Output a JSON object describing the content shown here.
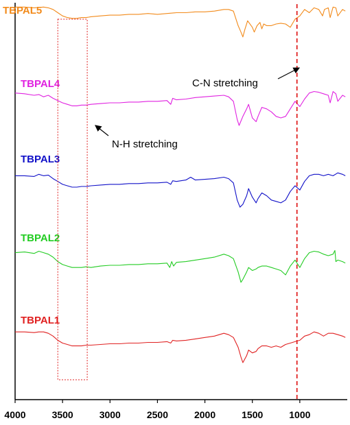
{
  "chart_data": {
    "type": "line",
    "title": "",
    "xlabel": "",
    "ylabel": "",
    "xlim": [
      4000,
      500
    ],
    "x_reversed": true,
    "x_ticks": [
      {
        "value": 4000,
        "label": "4000"
      },
      {
        "value": 3500,
        "label": "3500"
      },
      {
        "value": 3000,
        "label": "3000"
      },
      {
        "value": 2500,
        "label": "2500"
      },
      {
        "value": 2000,
        "label": "2000"
      },
      {
        "value": 1500,
        "label": "1500"
      },
      {
        "value": 1000,
        "label": "1000"
      }
    ],
    "y_axis_shown": false,
    "grid": false,
    "legend": "series names written beside each curve",
    "series": [
      {
        "name": "TBPAL5",
        "color": "#F28A1A",
        "x": [
          4000,
          3900,
          3800,
          3700,
          3650,
          3600,
          3550,
          3500,
          3450,
          3400,
          3350,
          3300,
          3250,
          3200,
          3100,
          3000,
          2900,
          2800,
          2700,
          2600,
          2500,
          2400,
          2300,
          2200,
          2100,
          2000,
          1900,
          1800,
          1750,
          1700,
          1650,
          1620,
          1600,
          1580,
          1550,
          1500,
          1480,
          1450,
          1420,
          1400,
          1380,
          1350,
          1300,
          1250,
          1200,
          1150,
          1100,
          1050,
          1000,
          950,
          900,
          850,
          800,
          760,
          740,
          700,
          680,
          650,
          620,
          600,
          550,
          520
        ],
        "y": [
          0.93,
          0.93,
          0.92,
          0.93,
          0.92,
          0.9,
          0.86,
          0.82,
          0.8,
          0.79,
          0.79,
          0.8,
          0.8,
          0.81,
          0.82,
          0.83,
          0.83,
          0.84,
          0.84,
          0.85,
          0.84,
          0.85,
          0.86,
          0.86,
          0.87,
          0.87,
          0.88,
          0.9,
          0.9,
          0.88,
          0.7,
          0.62,
          0.56,
          0.65,
          0.76,
          0.68,
          0.62,
          0.7,
          0.74,
          0.66,
          0.72,
          0.7,
          0.7,
          0.72,
          0.73,
          0.72,
          0.68,
          0.78,
          0.82,
          0.9,
          0.86,
          0.92,
          0.9,
          0.82,
          0.9,
          0.92,
          0.8,
          0.93,
          0.92,
          0.82,
          0.9,
          0.88
        ]
      },
      {
        "name": "TBPAL4",
        "color": "#E020E0",
        "x": [
          4000,
          3900,
          3800,
          3750,
          3700,
          3650,
          3600,
          3550,
          3500,
          3450,
          3400,
          3350,
          3300,
          3250,
          3200,
          3100,
          3000,
          2900,
          2800,
          2700,
          2600,
          2500,
          2400,
          2360,
          2340,
          2300,
          2200,
          2100,
          2000,
          1900,
          1800,
          1750,
          1700,
          1660,
          1640,
          1600,
          1560,
          1540,
          1500,
          1460,
          1440,
          1400,
          1350,
          1300,
          1250,
          1200,
          1150,
          1100,
          1050,
          1000,
          950,
          900,
          850,
          800,
          750,
          700,
          680,
          650,
          620,
          600,
          550,
          520
        ],
        "y": [
          0.93,
          0.92,
          0.9,
          0.91,
          0.88,
          0.9,
          0.86,
          0.83,
          0.8,
          0.78,
          0.76,
          0.76,
          0.77,
          0.77,
          0.78,
          0.79,
          0.8,
          0.8,
          0.81,
          0.81,
          0.82,
          0.82,
          0.83,
          0.78,
          0.86,
          0.84,
          0.85,
          0.87,
          0.88,
          0.89,
          0.9,
          0.88,
          0.82,
          0.58,
          0.5,
          0.62,
          0.72,
          0.78,
          0.6,
          0.55,
          0.62,
          0.74,
          0.72,
          0.68,
          0.62,
          0.6,
          0.62,
          0.72,
          0.82,
          0.75,
          0.85,
          0.93,
          0.95,
          0.94,
          0.92,
          0.9,
          0.8,
          0.95,
          0.92,
          0.82,
          0.9,
          0.88
        ]
      },
      {
        "name": "TBPAL3",
        "color": "#1010C8",
        "x": [
          4000,
          3900,
          3800,
          3750,
          3700,
          3650,
          3600,
          3550,
          3500,
          3450,
          3400,
          3350,
          3300,
          3250,
          3200,
          3100,
          3000,
          2900,
          2800,
          2700,
          2600,
          2500,
          2400,
          2360,
          2340,
          2300,
          2200,
          2150,
          2100,
          2000,
          1900,
          1800,
          1750,
          1700,
          1660,
          1630,
          1600,
          1560,
          1540,
          1500,
          1460,
          1440,
          1400,
          1350,
          1300,
          1250,
          1200,
          1150,
          1100,
          1050,
          1000,
          950,
          900,
          850,
          800,
          750,
          700,
          650,
          600,
          550,
          520
        ],
        "y": [
          0.9,
          0.9,
          0.89,
          0.92,
          0.9,
          0.91,
          0.86,
          0.82,
          0.78,
          0.76,
          0.74,
          0.74,
          0.75,
          0.75,
          0.76,
          0.77,
          0.78,
          0.78,
          0.79,
          0.79,
          0.8,
          0.8,
          0.81,
          0.78,
          0.83,
          0.82,
          0.84,
          0.88,
          0.84,
          0.85,
          0.86,
          0.88,
          0.86,
          0.8,
          0.56,
          0.46,
          0.5,
          0.62,
          0.72,
          0.6,
          0.52,
          0.58,
          0.66,
          0.62,
          0.56,
          0.54,
          0.52,
          0.56,
          0.68,
          0.76,
          0.7,
          0.82,
          0.9,
          0.92,
          0.92,
          0.9,
          0.92,
          0.9,
          0.94,
          0.92,
          0.9
        ]
      },
      {
        "name": "TBPAL2",
        "color": "#22CC22",
        "x": [
          4000,
          3900,
          3800,
          3750,
          3700,
          3650,
          3600,
          3550,
          3500,
          3450,
          3400,
          3350,
          3300,
          3250,
          3200,
          3100,
          3000,
          2900,
          2800,
          2700,
          2600,
          2500,
          2400,
          2370,
          2350,
          2330,
          2300,
          2200,
          2100,
          2000,
          1900,
          1800,
          1750,
          1700,
          1650,
          1620,
          1600,
          1560,
          1540,
          1500,
          1460,
          1440,
          1400,
          1350,
          1300,
          1250,
          1200,
          1150,
          1100,
          1050,
          1000,
          950,
          900,
          850,
          800,
          750,
          700,
          650,
          630,
          620,
          600,
          550,
          520
        ],
        "y": [
          0.92,
          0.93,
          0.91,
          0.94,
          0.92,
          0.9,
          0.86,
          0.8,
          0.76,
          0.74,
          0.72,
          0.72,
          0.72,
          0.73,
          0.72,
          0.74,
          0.75,
          0.75,
          0.76,
          0.76,
          0.77,
          0.77,
          0.78,
          0.72,
          0.8,
          0.74,
          0.79,
          0.8,
          0.82,
          0.84,
          0.86,
          0.9,
          0.88,
          0.84,
          0.66,
          0.52,
          0.56,
          0.66,
          0.72,
          0.68,
          0.7,
          0.72,
          0.74,
          0.74,
          0.72,
          0.7,
          0.68,
          0.62,
          0.74,
          0.82,
          0.72,
          0.84,
          0.92,
          0.94,
          0.93,
          0.9,
          0.88,
          0.9,
          0.95,
          0.8,
          0.82,
          0.8,
          0.78
        ]
      },
      {
        "name": "TBPAL1",
        "color": "#E02020",
        "x": [
          4000,
          3900,
          3800,
          3750,
          3700,
          3650,
          3600,
          3550,
          3500,
          3450,
          3400,
          3350,
          3300,
          3250,
          3200,
          3100,
          3000,
          2900,
          2800,
          2700,
          2600,
          2500,
          2400,
          2360,
          2340,
          2300,
          2200,
          2100,
          2000,
          1900,
          1800,
          1750,
          1700,
          1650,
          1620,
          1600,
          1560,
          1540,
          1500,
          1460,
          1440,
          1400,
          1350,
          1300,
          1250,
          1200,
          1150,
          1100,
          1050,
          1000,
          950,
          900,
          850,
          800,
          750,
          700,
          650,
          600,
          550,
          520
        ],
        "y": [
          0.92,
          0.92,
          0.91,
          0.92,
          0.92,
          0.9,
          0.86,
          0.8,
          0.76,
          0.74,
          0.72,
          0.72,
          0.72,
          0.73,
          0.73,
          0.74,
          0.75,
          0.75,
          0.76,
          0.76,
          0.77,
          0.77,
          0.78,
          0.76,
          0.8,
          0.79,
          0.8,
          0.82,
          0.84,
          0.86,
          0.9,
          0.88,
          0.84,
          0.7,
          0.56,
          0.48,
          0.58,
          0.66,
          0.62,
          0.64,
          0.68,
          0.72,
          0.72,
          0.7,
          0.72,
          0.7,
          0.74,
          0.76,
          0.78,
          0.8,
          0.86,
          0.88,
          0.92,
          0.9,
          0.86,
          0.9,
          0.9,
          0.88,
          0.86,
          0.84
        ]
      }
    ],
    "annotations": [
      {
        "text": "C-N stretching",
        "kind": "arrow-label"
      },
      {
        "text": "N-H stretching",
        "kind": "arrow-label"
      }
    ],
    "reference_line": {
      "x": 1030,
      "style": "dashed",
      "color": "#E02020"
    },
    "highlight_box": {
      "x_range": [
        3550,
        3240
      ],
      "style": "dotted",
      "color": "#E02020"
    }
  }
}
